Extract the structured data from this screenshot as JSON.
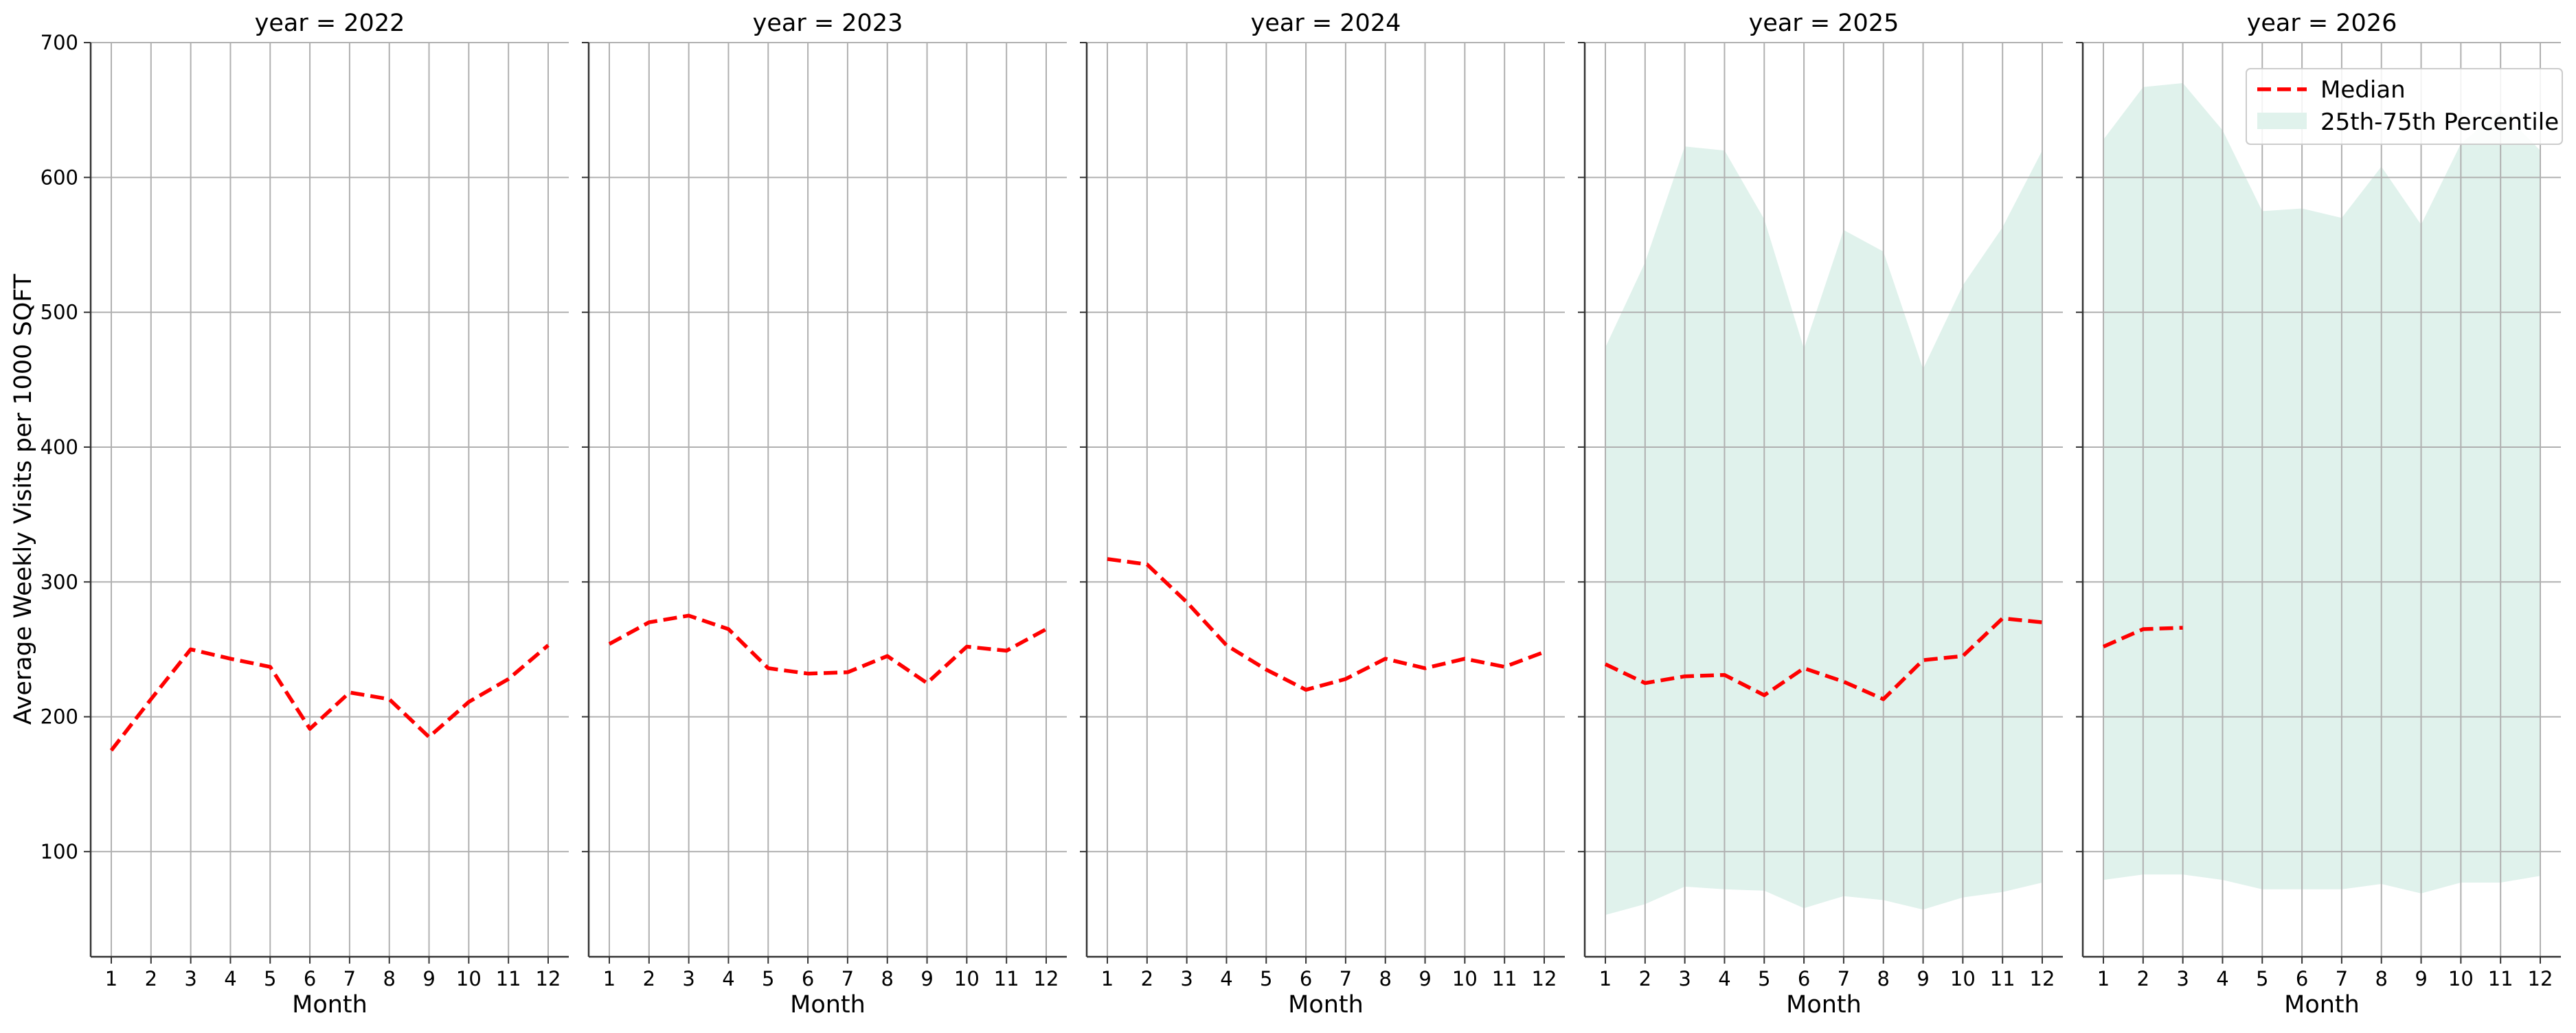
{
  "chart_data": {
    "type": "line",
    "ylabel": "Average Weekly Visits per 1000 SQFT",
    "xlabel": "Month",
    "ylim": [
      22,
      700
    ],
    "yticks": [
      100,
      200,
      300,
      400,
      500,
      600,
      700
    ],
    "xticks": [
      1,
      2,
      3,
      4,
      5,
      6,
      7,
      8,
      9,
      10,
      11,
      12
    ],
    "grid": true,
    "legend": {
      "placement": "top-right",
      "entries": [
        {
          "label": "Median",
          "style": "dashed-line",
          "color": "#ff0000"
        },
        {
          "label": "25th-75th Percentile",
          "style": "band",
          "color": "#e0f2ec"
        }
      ]
    },
    "colors": {
      "median": "#ff0000",
      "band": "#e0f2ec",
      "grid": "#b0b0b0"
    },
    "panels": [
      {
        "title": "year = 2022",
        "median": {
          "x": [
            1,
            2,
            3,
            4,
            5,
            6,
            7,
            8,
            9,
            10,
            11,
            12
          ],
          "y": [
            175,
            213,
            250,
            243,
            237,
            191,
            218,
            213,
            185,
            211,
            228,
            253
          ]
        },
        "band": null
      },
      {
        "title": "year = 2023",
        "median": {
          "x": [
            1,
            2,
            3,
            4,
            5,
            6,
            7,
            8,
            9,
            10,
            11,
            12
          ],
          "y": [
            254,
            270,
            275,
            265,
            236,
            232,
            233,
            245,
            225,
            252,
            249,
            265
          ]
        },
        "band": null
      },
      {
        "title": "year = 2024",
        "median": {
          "x": [
            1,
            2,
            3,
            4,
            5,
            6,
            7,
            8,
            9,
            10,
            11,
            12
          ],
          "y": [
            317,
            313,
            285,
            253,
            235,
            220,
            228,
            243,
            236,
            243,
            237,
            248
          ]
        },
        "band": null
      },
      {
        "title": "year = 2025",
        "median": {
          "x": [
            1,
            2,
            3,
            4,
            5,
            6,
            7,
            8,
            9,
            10,
            11,
            12
          ],
          "y": [
            239,
            225,
            230,
            231,
            216,
            236,
            226,
            213,
            242,
            245,
            273,
            270
          ]
        },
        "band": {
          "x": [
            1,
            2,
            3,
            4,
            5,
            6,
            7,
            8,
            9,
            10,
            11,
            12
          ],
          "lower": [
            53,
            61,
            74,
            72,
            71,
            58,
            67,
            64,
            57,
            66,
            70,
            77
          ],
          "upper": [
            474,
            537,
            623,
            620,
            569,
            473,
            561,
            545,
            458,
            520,
            563,
            620
          ]
        }
      },
      {
        "title": "year = 2026",
        "median": {
          "x": [
            1,
            2,
            3
          ],
          "y": [
            252,
            265,
            266
          ]
        },
        "band": {
          "x": [
            1,
            2,
            3,
            4,
            5,
            6,
            7,
            8,
            9,
            10,
            11,
            12
          ],
          "lower": [
            79,
            83,
            83,
            79,
            72,
            72,
            72,
            76,
            69,
            77,
            77,
            82
          ],
          "upper": [
            628,
            667,
            670,
            635,
            575,
            577,
            570,
            608,
            565,
            625,
            650,
            620
          ]
        }
      }
    ]
  }
}
